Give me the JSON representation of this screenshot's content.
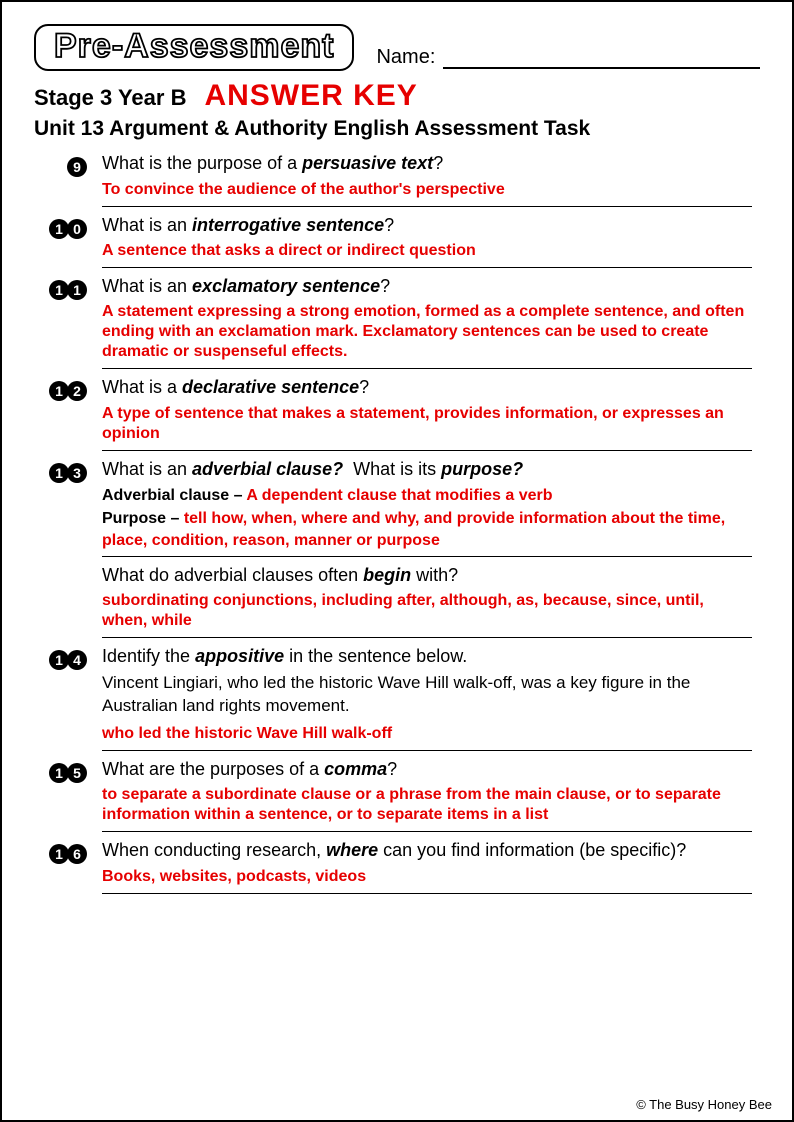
{
  "colors": {
    "answer_red": "#e60000",
    "text_black": "#000000",
    "page_bg": "#ffffff"
  },
  "typography": {
    "body_font": "Comic Sans MS / handwriting",
    "answer_font": "Arial bold",
    "badge_font": "Arial Black outlined",
    "title_fontsize_pt": 34,
    "subhead_fontsize_pt": 22,
    "question_fontsize_pt": 18,
    "answer_fontsize_pt": 16
  },
  "header": {
    "badge": "Pre-Assessment",
    "name_label": "Name:",
    "stage": "Stage 3 Year B",
    "answer_key": "ANSWER KEY",
    "unit_title": "Unit 13 Argument & Authority English Assessment Task"
  },
  "questions": [
    {
      "num": "9",
      "q_html": "What is the purpose of a <b>persuasive text</b>?",
      "answer": "To convince the audience of the author's perspective"
    },
    {
      "num": "10",
      "q_html": "What is an <b>interrogative sentence</b>?",
      "answer": "A sentence that asks a direct or indirect question"
    },
    {
      "num": "11",
      "q_html": "What is an <b>exclamatory sentence</b>?",
      "answer": "A statement expressing a strong emotion, formed as a complete sentence, and often ending with an exclamation mark. Exclamatory sentences can be used to create dramatic or suspenseful effects."
    },
    {
      "num": "12",
      "q_html": "What is a <b>declarative sentence</b>?",
      "answer": "A type of sentence that makes a statement, provides information, or expresses an opinion"
    },
    {
      "num": "13",
      "q_html": "What is an <b>adverbial clause?</b>&nbsp;&nbsp;What is its <b>purpose?</b>",
      "sublines": [
        {
          "label": "Adverbial clause – ",
          "red": "A dependent clause that modifies a verb"
        },
        {
          "label": "Purpose – ",
          "red": "tell how, when, where and why, and provide information about the time, place, condition, reason, manner or purpose"
        }
      ],
      "followup_q_html": "What do adverbial clauses often <b>begin</b> with?",
      "followup_answer": "subordinating conjunctions, including after, although, as, because, since, until, when, while"
    },
    {
      "num": "14",
      "q_html": "Identify the <b>appositive</b> in the sentence below.",
      "example": "Vincent Lingiari, who led the historic Wave Hill walk-off, was a key figure in the Australian land rights movement.",
      "answer": "who led the historic Wave Hill walk-off"
    },
    {
      "num": "15",
      "q_html": "What are the purposes of a <b>comma</b>?",
      "answer": "to separate a subordinate clause or a phrase from the main clause, or to separate information within a sentence, or to separate items in a list"
    },
    {
      "num": "16",
      "q_html": "When conducting research, <b>where</b> can you find information (be specific)?",
      "answer": "Books, websites, podcasts, videos"
    }
  ],
  "footer": "© The Busy Honey Bee"
}
